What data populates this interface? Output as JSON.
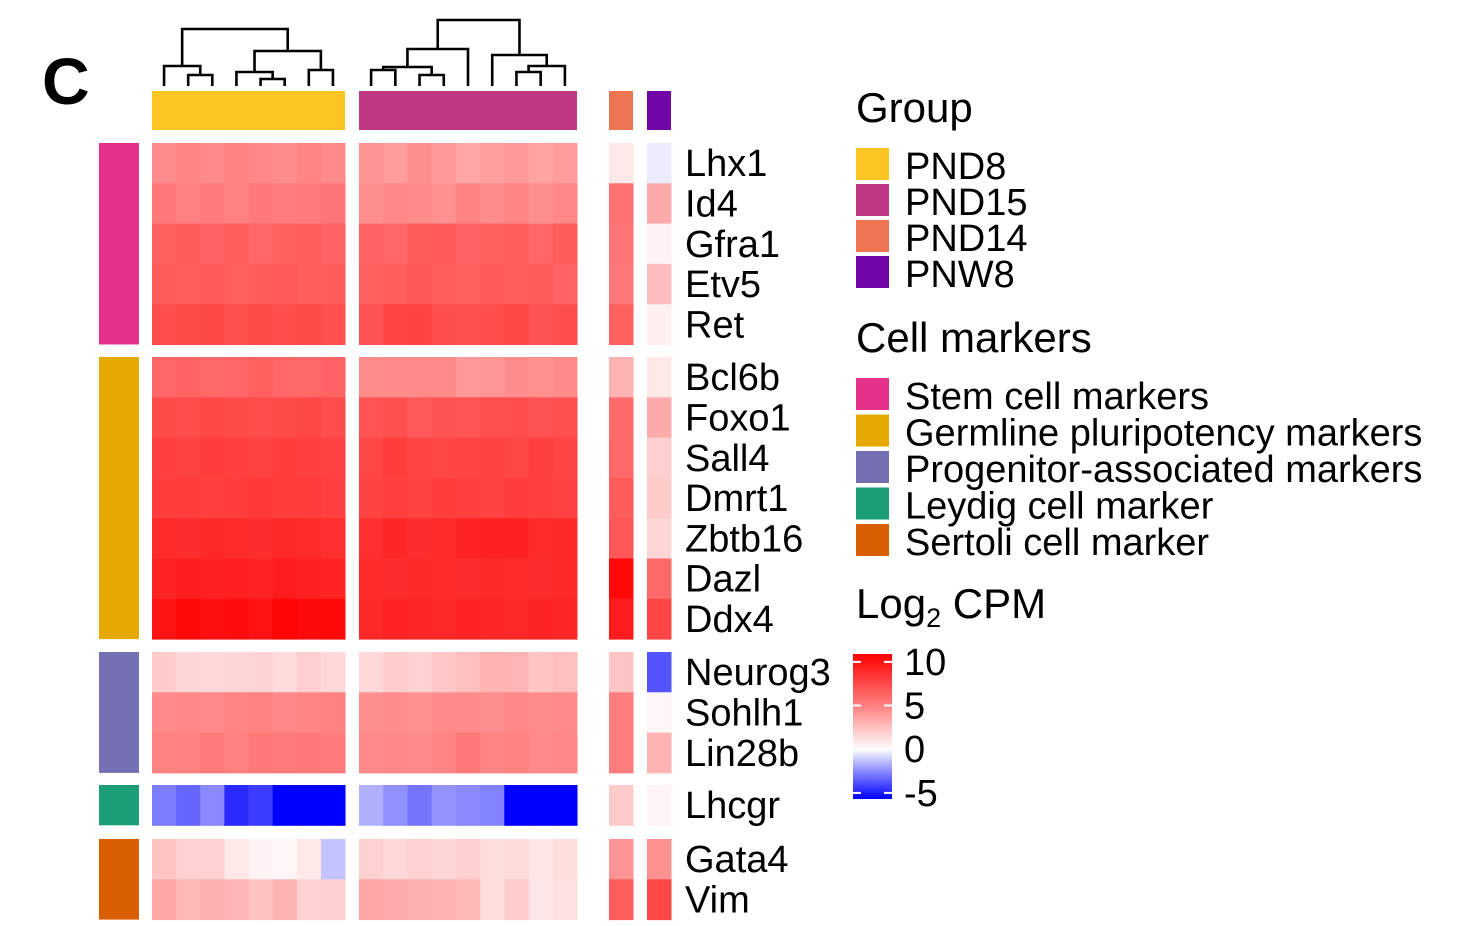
{
  "panel_label": "C",
  "chart_data": {
    "type": "heatmap",
    "rows": [
      "Lhx1",
      "Id4",
      "Gfra1",
      "Etv5",
      "Ret",
      "Bcl6b",
      "Foxo1",
      "Sall4",
      "Dmrt1",
      "Zbtb16",
      "Dazl",
      "Ddx4",
      "Neurog3",
      "Sohlh1",
      "Lin28b",
      "Lhcgr",
      "Gata4",
      "Vim"
    ],
    "row_groups": [
      {
        "marker": "Stem cell markers",
        "count": 5
      },
      {
        "marker": "Germline pluripotency markers",
        "count": 7
      },
      {
        "marker": "Progenitor-associated markers",
        "count": 3
      },
      {
        "marker": "Leydig cell marker",
        "count": 1
      },
      {
        "marker": "Sertoli cell marker",
        "count": 2
      }
    ],
    "column_blocks": [
      {
        "group": "PND8",
        "n_cols": 8
      },
      {
        "group": "PND15",
        "n_cols": 9
      },
      {
        "group": "PND14",
        "n_cols": 1
      },
      {
        "group": "PNW8",
        "n_cols": 1
      }
    ],
    "values": {
      "PND8": [
        [
          4.5,
          4.8,
          4.6,
          4.9,
          4.7,
          4.5,
          4.8,
          4.6
        ],
        [
          5.3,
          5.0,
          5.2,
          4.9,
          5.3,
          5.1,
          5.2,
          5.4
        ],
        [
          6.2,
          6.4,
          6.1,
          6.3,
          6.0,
          6.2,
          6.3,
          6.1
        ],
        [
          6.4,
          6.3,
          6.5,
          6.2,
          6.4,
          6.5,
          6.3,
          6.4
        ],
        [
          7.0,
          7.1,
          7.2,
          6.9,
          7.1,
          7.0,
          7.1,
          6.9
        ],
        [
          6.0,
          6.1,
          5.9,
          6.0,
          6.2,
          6.0,
          5.9,
          6.1
        ],
        [
          7.1,
          7.0,
          7.2,
          7.1,
          7.0,
          7.1,
          7.2,
          7.0
        ],
        [
          7.5,
          7.4,
          7.6,
          7.5,
          7.4,
          7.6,
          7.5,
          7.4
        ],
        [
          7.6,
          7.7,
          7.5,
          7.6,
          7.8,
          7.6,
          7.7,
          7.5
        ],
        [
          8.3,
          8.2,
          8.4,
          8.3,
          8.2,
          8.4,
          8.3,
          8.1
        ],
        [
          8.6,
          8.9,
          8.7,
          8.8,
          8.6,
          8.9,
          8.7,
          8.6
        ],
        [
          9.2,
          9.7,
          9.4,
          9.5,
          9.3,
          9.8,
          9.6,
          9.7
        ],
        [
          2.0,
          1.6,
          1.5,
          1.6,
          1.7,
          1.4,
          1.9,
          1.5
        ],
        [
          4.6,
          4.7,
          4.6,
          4.8,
          4.9,
          4.7,
          4.8,
          4.9
        ],
        [
          4.9,
          5.0,
          5.2,
          5.0,
          5.3,
          5.2,
          5.3,
          5.2
        ],
        [
          -2.8,
          -3.3,
          -2.5,
          -4.6,
          -4.2,
          -5.5,
          -5.5,
          -5.5
        ],
        [
          2.3,
          1.8,
          1.8,
          0.9,
          0.5,
          0.3,
          0.9,
          -1.3
        ],
        [
          3.4,
          2.8,
          3.1,
          2.9,
          2.4,
          3.0,
          1.8,
          1.9
        ]
      ],
      "PND15": [
        [
          4.2,
          3.9,
          4.4,
          4.0,
          3.5,
          3.8,
          4.0,
          3.6,
          3.9
        ],
        [
          4.4,
          4.7,
          4.6,
          4.3,
          4.9,
          4.5,
          4.8,
          4.4,
          4.7
        ],
        [
          6.1,
          6.0,
          6.4,
          6.5,
          6.1,
          6.2,
          6.3,
          6.0,
          6.4
        ],
        [
          6.2,
          6.3,
          6.6,
          6.3,
          6.2,
          6.5,
          6.3,
          6.4,
          6.1
        ],
        [
          6.8,
          7.3,
          7.4,
          7.0,
          6.9,
          7.0,
          7.2,
          6.8,
          7.0
        ],
        [
          4.5,
          4.6,
          4.6,
          4.6,
          4.0,
          4.1,
          4.5,
          4.3,
          4.6
        ],
        [
          6.7,
          6.9,
          6.5,
          6.8,
          6.7,
          6.9,
          7.0,
          6.8,
          6.9
        ],
        [
          7.2,
          7.6,
          7.3,
          7.2,
          7.3,
          7.4,
          7.2,
          7.5,
          7.3
        ],
        [
          7.4,
          7.5,
          7.4,
          7.6,
          7.5,
          7.4,
          7.6,
          7.5,
          7.4
        ],
        [
          8.1,
          8.5,
          8.2,
          8.3,
          8.6,
          8.7,
          8.7,
          8.3,
          8.4
        ],
        [
          8.3,
          8.2,
          8.4,
          8.3,
          8.2,
          8.4,
          8.3,
          8.2,
          8.4
        ],
        [
          8.4,
          8.6,
          8.5,
          8.4,
          8.6,
          8.5,
          8.4,
          8.6,
          8.5
        ],
        [
          1.5,
          2.0,
          1.8,
          2.2,
          2.5,
          3.0,
          2.9,
          2.3,
          2.5
        ],
        [
          4.4,
          4.5,
          4.3,
          4.6,
          4.6,
          4.4,
          4.7,
          4.5,
          4.6
        ],
        [
          4.6,
          4.7,
          4.6,
          4.8,
          5.3,
          4.8,
          4.9,
          4.6,
          4.7
        ],
        [
          -1.7,
          -2.4,
          -3.0,
          -2.3,
          -2.5,
          -2.7,
          -5.5,
          -5.5,
          -5.5
        ],
        [
          1.8,
          1.5,
          1.8,
          1.6,
          1.9,
          1.3,
          1.4,
          1.0,
          1.3
        ],
        [
          3.5,
          3.3,
          3.1,
          3.0,
          2.8,
          1.3,
          2.0,
          1.0,
          1.2
        ]
      ],
      "PND14": [
        [
          0.9
        ],
        [
          5.6
        ],
        [
          5.4
        ],
        [
          5.3
        ],
        [
          6.2
        ],
        [
          3.0
        ],
        [
          5.8
        ],
        [
          5.9
        ],
        [
          6.4
        ],
        [
          6.6
        ],
        [
          9.7
        ],
        [
          8.9
        ],
        [
          2.3
        ],
        [
          5.1
        ],
        [
          5.1
        ],
        [
          2.0
        ],
        [
          4.2
        ],
        [
          6.3
        ]
      ],
      "PNW8": [
        [
          -0.4
        ],
        [
          3.3
        ],
        [
          0.5
        ],
        [
          2.6
        ],
        [
          0.6
        ],
        [
          0.9
        ],
        [
          3.3
        ],
        [
          1.9
        ],
        [
          2.0
        ],
        [
          1.6
        ],
        [
          5.9
        ],
        [
          7.3
        ],
        [
          -3.7
        ],
        [
          0.3
        ],
        [
          3.0
        ],
        [
          0.4
        ],
        [
          4.3
        ],
        [
          7.2
        ]
      ]
    },
    "legends": {
      "group": {
        "title": "Group",
        "entries": [
          {
            "label": "PND8",
            "color": "#FCC622"
          },
          {
            "label": "PND15",
            "color": "#BE3883"
          },
          {
            "label": "PND14",
            "color": "#EE7552"
          },
          {
            "label": "PNW8",
            "color": "#7106A9"
          }
        ]
      },
      "markers": {
        "title": "Cell markers",
        "entries": [
          {
            "label": "Stem cell markers",
            "color": "#E5318A"
          },
          {
            "label": "Germline pluripotency markers",
            "color": "#E6A902"
          },
          {
            "label": "Progenitor-associated markers",
            "color": "#7570B3"
          },
          {
            "label": "Leydig cell marker",
            "color": "#1B9E77"
          },
          {
            "label": "Sertoli cell marker",
            "color": "#D95F02"
          }
        ]
      },
      "scale": {
        "title": "Log",
        "title_sub": "2",
        "title_suffix": " CPM",
        "ticks": [
          "10",
          "5",
          "0",
          "-5"
        ],
        "tick_values": [
          10,
          5,
          0,
          -5
        ],
        "colors": {
          "low": "#0000FF",
          "mid": "#FFFFFF",
          "high": "#FF0000"
        }
      }
    },
    "dendrograms": "two column dendrograms above PND8 and PND15 blocks"
  }
}
